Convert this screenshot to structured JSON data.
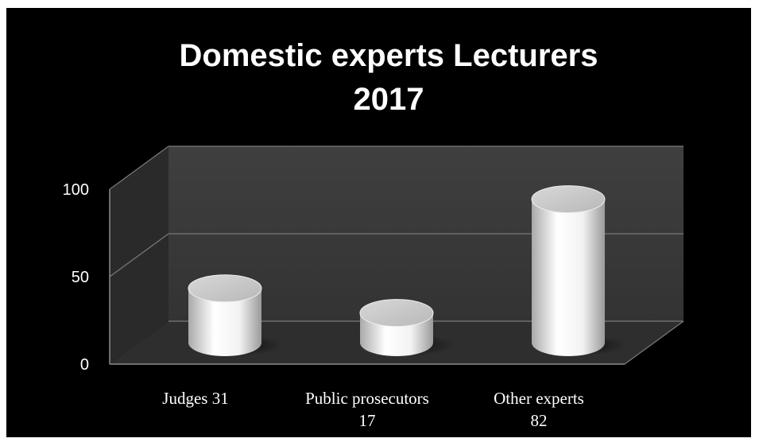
{
  "chart_data": {
    "type": "bar",
    "style": "3d-cylinder",
    "title_lines": [
      "Domestic experts Lecturers",
      "2017"
    ],
    "categories": [
      {
        "lines": [
          "Judges 31"
        ]
      },
      {
        "lines": [
          "Public prosecutors",
          "17"
        ]
      },
      {
        "lines": [
          "Other experts",
          "82"
        ]
      }
    ],
    "values": [
      31,
      17,
      82
    ],
    "ylim": [
      0,
      100
    ],
    "yticks": [
      "0",
      "50",
      "100"
    ],
    "grid": true,
    "legend": "none",
    "colors": {
      "background": "#000000",
      "back_wall": "#3a3a3a",
      "side_wall": "#2a2a2a",
      "floor": "#2e2e2e",
      "gridline": "#7a7a7a",
      "bar": "#ffffff",
      "text": "#ffffff"
    }
  }
}
